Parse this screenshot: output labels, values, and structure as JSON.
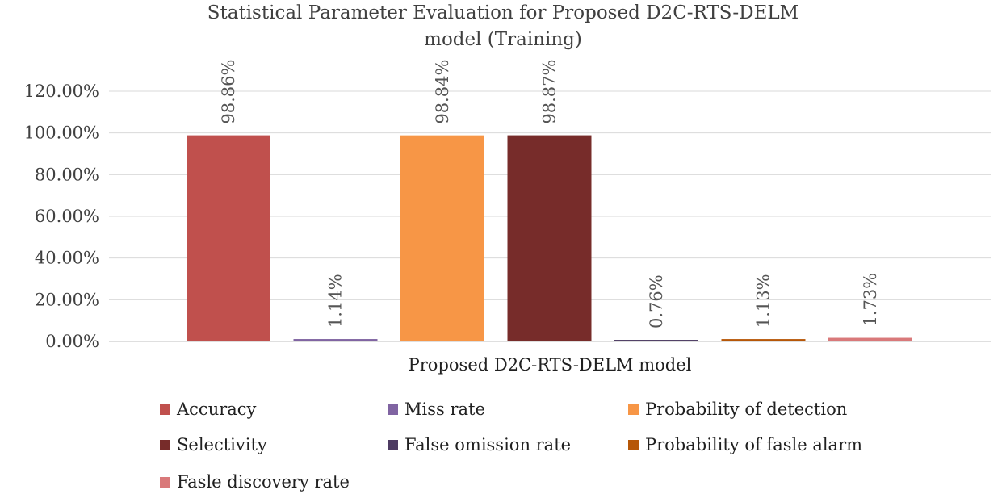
{
  "chart_data": {
    "type": "bar",
    "title": [
      "Statistical Parameter Evaluation for Proposed D2C-RTS-DELM",
      "model (Training)"
    ],
    "xlabel": "",
    "ylabel": "",
    "categories": [
      "Proposed D2C-RTS-DELM model"
    ],
    "ylim": [
      0,
      120
    ],
    "yticks": [
      "0.00%",
      "20.00%",
      "40.00%",
      "60.00%",
      "80.00%",
      "100.00%",
      "120.00%"
    ],
    "grid": true,
    "legend_position": "bottom",
    "series": [
      {
        "name": "Accuracy",
        "values": [
          98.86
        ],
        "label": "98.86%",
        "color": "#C0504D"
      },
      {
        "name": "Miss rate",
        "values": [
          1.14
        ],
        "label": "1.14%",
        "color": "#8064A2"
      },
      {
        "name": "Probability of detection",
        "values": [
          98.84
        ],
        "label": "98.84%",
        "color": "#F79646"
      },
      {
        "name": "Selectivity",
        "values": [
          98.87
        ],
        "label": "98.87%",
        "color": "#772C2A"
      },
      {
        "name": "False omission rate",
        "values": [
          0.76
        ],
        "label": "0.76%",
        "color": "#4D3B62"
      },
      {
        "name": "Probability of fasle alarm",
        "values": [
          1.13
        ],
        "label": "1.13%",
        "color": "#B65708"
      },
      {
        "name": "Fasle discovery rate",
        "values": [
          1.73
        ],
        "label": "1.73%",
        "color": "#D9797A"
      }
    ]
  }
}
